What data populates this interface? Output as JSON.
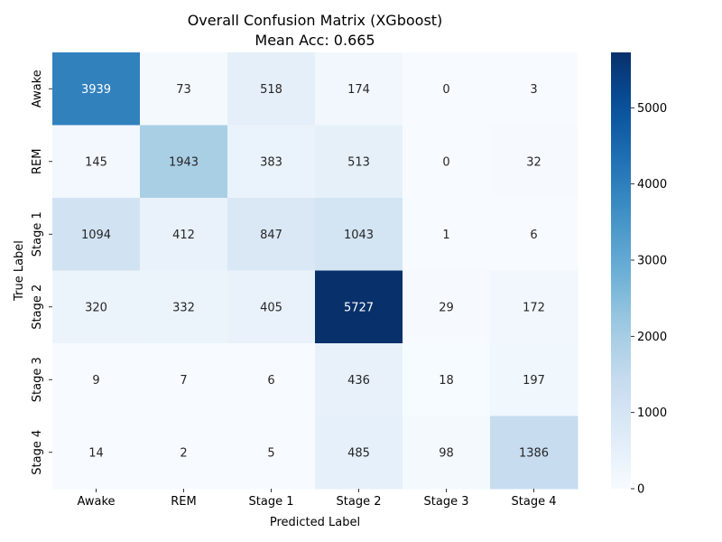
{
  "chart_data": {
    "type": "heatmap",
    "title": "Overall Confusion Matrix (XGboost)",
    "subtitle": "Mean Acc: 0.665",
    "xlabel": "Predicted Label",
    "ylabel": "True Label",
    "x_categories": [
      "Awake",
      "REM",
      "Stage 1",
      "Stage 2",
      "Stage 3",
      "Stage 4"
    ],
    "y_categories": [
      "Awake",
      "REM",
      "Stage 1",
      "Stage 2",
      "Stage 3",
      "Stage 4"
    ],
    "values": [
      [
        3939,
        73,
        518,
        174,
        0,
        3
      ],
      [
        145,
        1943,
        383,
        513,
        0,
        32
      ],
      [
        1094,
        412,
        847,
        1043,
        1,
        6
      ],
      [
        320,
        332,
        405,
        5727,
        29,
        172
      ],
      [
        9,
        7,
        6,
        436,
        18,
        197
      ],
      [
        14,
        2,
        5,
        485,
        98,
        1386
      ]
    ],
    "colormap": "Blues",
    "vmin": 0,
    "vmax": 5727,
    "colorbar_ticks": [
      0,
      1000,
      2000,
      3000,
      4000,
      5000
    ]
  }
}
